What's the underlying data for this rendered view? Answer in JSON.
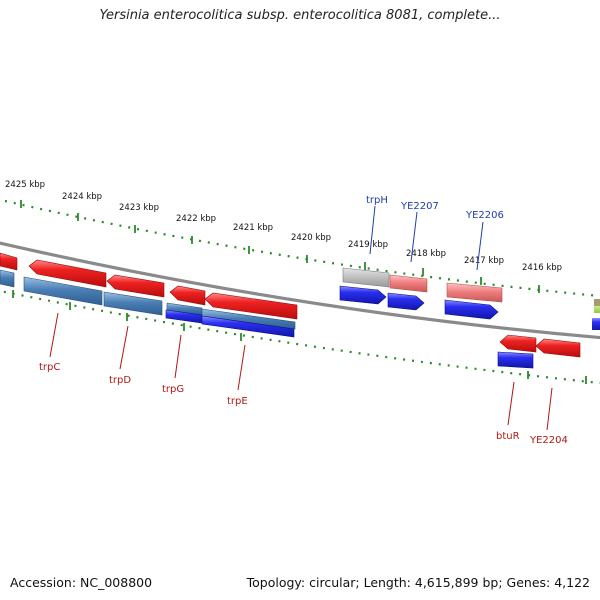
{
  "title": "Yersinia enterocolitica subsp. enterocolitica 8081, complete...",
  "footer": {
    "accession": "Accession: NC_008800",
    "summary": "Topology: circular; Length: 4,615,899 bp; Genes: 4,122"
  },
  "scale_labels": [
    "2425 kbp",
    "2424 kbp",
    "2423 kbp",
    "2422 kbp",
    "2421 kbp",
    "2420 kbp",
    "2419 kbp",
    "2418 kbp",
    "2417 kbp",
    "2416 kbp"
  ],
  "gene_labels_top": [
    "trpH",
    "YE2207",
    "YE2206"
  ],
  "gene_labels_bottom": [
    "trpC",
    "trpD",
    "trpG",
    "trpE",
    "btuR",
    "YE2204"
  ],
  "colors": {
    "backbone": "#808080",
    "scale_ticks": "#2a8a2a",
    "forward_gene": "#e8201e",
    "reverse_gene": "#2a35e0",
    "pseudo_gene": "#f07a7a",
    "hypothetical_gene": "#b8b8b8",
    "steel_gene": "#4a7fb5",
    "top_label": "#1f3ea6",
    "bottom_label": "#b01818"
  }
}
